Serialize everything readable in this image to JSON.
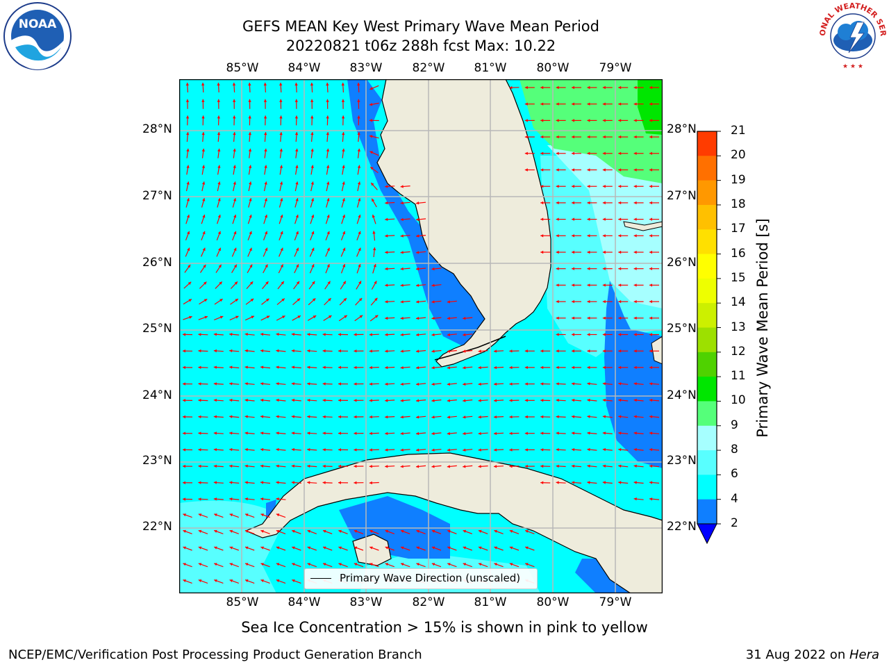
{
  "header": {
    "title_line1": "GEFS MEAN Key West Primary Wave Mean Period",
    "title_line2": "20220821 t06z 288h fcst   Max: 10.22"
  },
  "map": {
    "lon_labels": [
      "85°W",
      "84°W",
      "83°W",
      "82°W",
      "81°W",
      "80°W",
      "79°W"
    ],
    "lat_labels": [
      "28°N",
      "27°N",
      "26°N",
      "25°N",
      "24°N",
      "23°N",
      "22°N"
    ],
    "extent": {
      "lon": [
        -86.0,
        -78.25
      ],
      "lat": [
        21.05,
        28.75
      ]
    },
    "colors": {
      "land": "#eeecdc",
      "band_2_4": "#0f7fff",
      "band_4_6": "#00ffff",
      "band_6_8": "#58ffff",
      "band_8_9": "#a6ffff",
      "band_9_10": "#55ff7a",
      "band_10_11": "#00e600",
      "arrow": "#ff0000",
      "grid": "#b8b8b8"
    },
    "arrow_legend": "Primary Wave Direction (unscaled)"
  },
  "colorbar": {
    "label": "Primary Wave Mean Period [s]",
    "ticks": [
      "2",
      "4",
      "6",
      "8",
      "9",
      "10",
      "11",
      "12",
      "13",
      "14",
      "15",
      "16",
      "17",
      "18",
      "19",
      "20",
      "21"
    ],
    "colors": [
      "#0f7fff",
      "#00ffff",
      "#58ffff",
      "#a6ffff",
      "#55ff7a",
      "#00e600",
      "#4fd200",
      "#9de000",
      "#ccf000",
      "#eeff00",
      "#ffff00",
      "#ffe000",
      "#ffc000",
      "#ff9800",
      "#ff7000",
      "#ff3c00",
      "#ff0000"
    ],
    "under_color": "#0000ff"
  },
  "notes": {
    "ice": "Sea Ice Concentration > 15% is shown in pink to yellow",
    "footer_left": "NCEP/EMC/Verification Post Processing Product Generation Branch",
    "footer_date": "31 Aug 2022 on ",
    "footer_host": "Hera"
  },
  "logos": {
    "noaa_text": "NOAA",
    "nws_text": "NATIONAL WEATHER SERVICE"
  }
}
